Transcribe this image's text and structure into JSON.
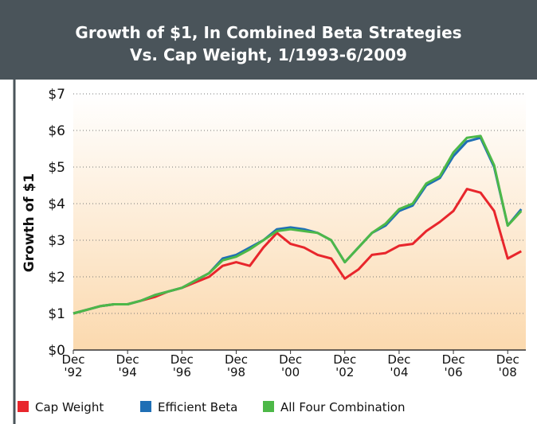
{
  "chart_data": {
    "type": "line",
    "title": [
      "Growth of $1, In Combined Beta Strategies",
      "Vs. Cap Weight, 1/1993-6/2009"
    ],
    "y_label": "Growth of $1",
    "x": [
      1992.92,
      1993.42,
      1993.92,
      1994.42,
      1994.92,
      1995.42,
      1995.92,
      1996.42,
      1996.92,
      1997.42,
      1997.92,
      1998.42,
      1998.92,
      1999.42,
      1999.92,
      2000.42,
      2000.92,
      2001.42,
      2001.92,
      2002.42,
      2002.92,
      2003.42,
      2003.92,
      2004.42,
      2004.92,
      2005.42,
      2005.92,
      2006.42,
      2006.92,
      2007.42,
      2007.92,
      2008.42,
      2008.92,
      2009.42
    ],
    "series": [
      {
        "name": "Cap Weight",
        "color": "#e8262c",
        "values": [
          1.0,
          1.1,
          1.2,
          1.25,
          1.25,
          1.35,
          1.45,
          1.6,
          1.7,
          1.85,
          2.0,
          2.3,
          2.4,
          2.3,
          2.8,
          3.2,
          2.9,
          2.8,
          2.6,
          2.5,
          1.95,
          2.2,
          2.6,
          2.65,
          2.85,
          2.9,
          3.25,
          3.5,
          3.8,
          4.4,
          4.3,
          3.8,
          2.5,
          2.7
        ]
      },
      {
        "name": "Efficient Beta",
        "color": "#1f6fb5",
        "values": [
          1.0,
          1.1,
          1.2,
          1.25,
          1.25,
          1.35,
          1.5,
          1.6,
          1.7,
          1.9,
          2.1,
          2.5,
          2.6,
          2.8,
          3.0,
          3.3,
          3.35,
          3.3,
          3.2,
          3.0,
          2.4,
          2.8,
          3.2,
          3.4,
          3.8,
          3.95,
          4.5,
          4.7,
          5.3,
          5.7,
          5.8,
          5.0,
          3.4,
          3.85
        ]
      },
      {
        "name": "All Four Combination",
        "color": "#4db848",
        "values": [
          1.0,
          1.1,
          1.2,
          1.25,
          1.25,
          1.35,
          1.5,
          1.6,
          1.7,
          1.9,
          2.1,
          2.45,
          2.55,
          2.75,
          3.0,
          3.25,
          3.3,
          3.25,
          3.2,
          3.0,
          2.4,
          2.8,
          3.2,
          3.45,
          3.85,
          4.0,
          4.55,
          4.75,
          5.4,
          5.8,
          5.85,
          5.05,
          3.4,
          3.8
        ]
      }
    ],
    "xlim": [
      1992.92,
      2009.5
    ],
    "xticks": [
      {
        "value": 1992.92,
        "label": "Dec '92"
      },
      {
        "value": 1994.92,
        "label": "Dec '94"
      },
      {
        "value": 1996.92,
        "label": "Dec '96"
      },
      {
        "value": 1998.92,
        "label": "Dec '98"
      },
      {
        "value": 2000.92,
        "label": "Dec '00"
      },
      {
        "value": 2002.92,
        "label": "Dec '02"
      },
      {
        "value": 2004.92,
        "label": "Dec '04"
      },
      {
        "value": 2006.92,
        "label": "Dec '06"
      },
      {
        "value": 2008.92,
        "label": "Dec '08"
      }
    ],
    "ylim": [
      0,
      7
    ],
    "yticks": [
      {
        "value": 0,
        "label": "$0"
      },
      {
        "value": 1,
        "label": "$1"
      },
      {
        "value": 2,
        "label": "$2"
      },
      {
        "value": 3,
        "label": "$3"
      },
      {
        "value": 4,
        "label": "$4"
      },
      {
        "value": 5,
        "label": "$5"
      },
      {
        "value": 6,
        "label": "$6"
      },
      {
        "value": 7,
        "label": "$7"
      }
    ],
    "grid": true,
    "legend": "bottom"
  }
}
